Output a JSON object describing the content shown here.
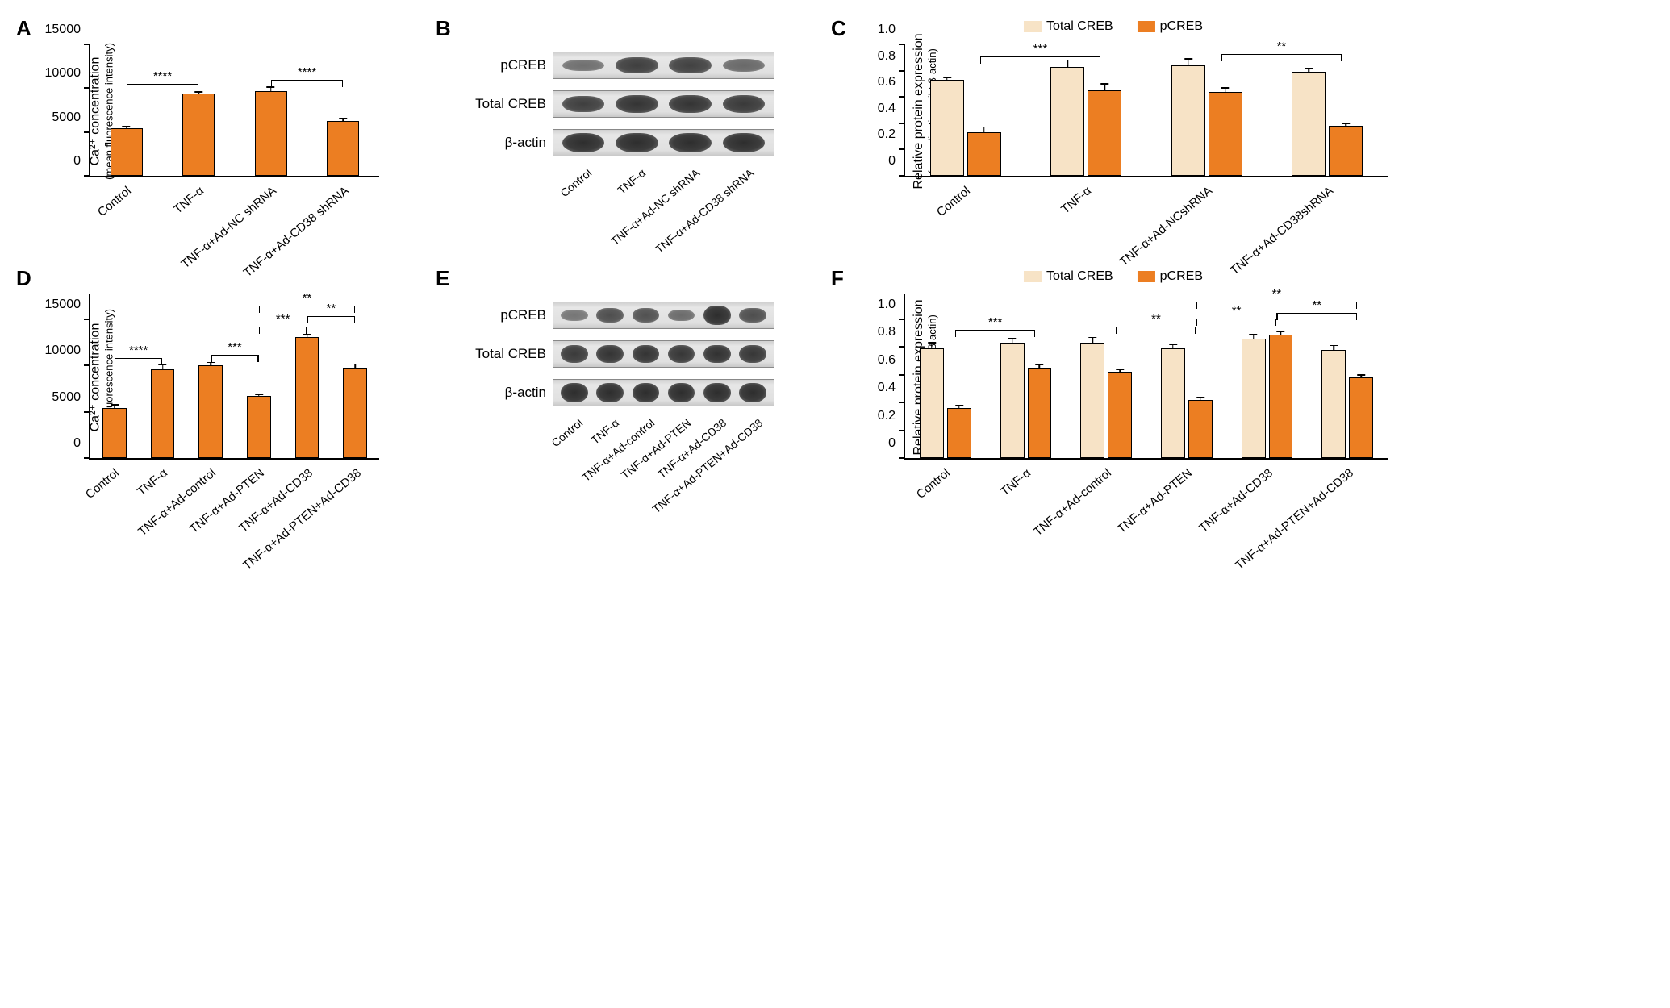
{
  "colors": {
    "bar_orange": "#ec7e22",
    "bar_cream": "#f7e3c6",
    "axis": "#000000"
  },
  "panel_labels": {
    "A": "A",
    "B": "B",
    "C": "C",
    "D": "D",
    "E": "E",
    "F": "F"
  },
  "panelA": {
    "type": "bar",
    "ylabel_line1": "Ca²⁺ concentration",
    "ylabel_line2": "(mean fluorescence intensity)",
    "ylim": [
      0,
      15000
    ],
    "yticks": [
      0,
      5000,
      10000,
      15000
    ],
    "categories": [
      "Control",
      "TNF-α",
      "TNF-α+Ad-NC shRNA",
      "TNF-α+Ad-CD38 shRNA"
    ],
    "values": [
      5400,
      9400,
      9700,
      6300
    ],
    "errors": [
      400,
      350,
      600,
      450
    ],
    "bar_color": "#ec7e22",
    "bar_width_pct": 45,
    "sig": [
      {
        "from": 0,
        "to": 1,
        "y": 10400,
        "label": "****"
      },
      {
        "from": 2,
        "to": 3,
        "y": 10900,
        "label": "****"
      }
    ]
  },
  "panelB": {
    "rows": [
      {
        "label": "pCREB",
        "bands": [
          0.35,
          0.72,
          0.7,
          0.4
        ]
      },
      {
        "label": "Total CREB",
        "bands": [
          0.72,
          0.8,
          0.8,
          0.76
        ]
      },
      {
        "label": "β-actin",
        "bands": [
          0.85,
          0.85,
          0.85,
          0.85
        ]
      }
    ],
    "categories": [
      "Control",
      "TNF-α",
      "TNF-α+Ad-NC shRNA",
      "TNF-α+Ad-CD38 shRNA"
    ]
  },
  "panelC": {
    "type": "grouped-bar",
    "ylabel_line1": "Relative protein expression",
    "ylabel_line2": "(normalization wiht β-actin)",
    "ylim": [
      0,
      1.0
    ],
    "yticks": [
      0,
      0.2,
      0.4,
      0.6,
      0.8,
      1.0
    ],
    "categories": [
      "Control",
      "TNF-α",
      "TNF-α+Ad-NCshRNA",
      "TNF-α+Ad-CD38shRNA"
    ],
    "series": [
      {
        "name": "Total CREB",
        "color": "#f7e3c6",
        "values": [
          0.73,
          0.83,
          0.84,
          0.79
        ],
        "errors": [
          0.03,
          0.06,
          0.06,
          0.04
        ]
      },
      {
        "name": "pCREB",
        "color": "#ec7e22",
        "values": [
          0.33,
          0.65,
          0.64,
          0.38
        ],
        "errors": [
          0.05,
          0.06,
          0.04,
          0.03
        ]
      }
    ],
    "bar_width_pct": 28,
    "sig": [
      {
        "from_group": 0,
        "from_series": 1,
        "to_group": 1,
        "to_series": 1,
        "y": 0.9,
        "label": "***"
      },
      {
        "from_group": 2,
        "from_series": 1,
        "to_group": 3,
        "to_series": 1,
        "y": 0.92,
        "label": "**"
      }
    ]
  },
  "panelD": {
    "type": "bar",
    "ylabel_line1": "Ca²⁺ concentration",
    "ylabel_line2": "(mean fluorescence intensity)",
    "ylim": [
      0,
      15000
    ],
    "yticks": [
      0,
      5000,
      10000,
      15000
    ],
    "categories": [
      "Control",
      "TNF-α",
      "TNF-α+Ad-control",
      "TNF-α+Ad-PTEN",
      "TNF-α+Ad-CD38",
      "TNF-α+Ad-PTEN+Ad-CD38"
    ],
    "values": [
      5400,
      9600,
      10000,
      6700,
      13100,
      9800
    ],
    "errors": [
      500,
      600,
      500,
      300,
      450,
      500
    ],
    "bar_color": "#ec7e22",
    "bar_width_pct": 50,
    "sig": [
      {
        "from": 0,
        "to": 1,
        "y": 10700,
        "label": "****"
      },
      {
        "from": 2,
        "to": 3,
        "y": 11100,
        "label": "***"
      },
      {
        "from": 3,
        "to": 4,
        "y": 14100,
        "label": "***"
      },
      {
        "from": 4,
        "to": 5,
        "y": 15300,
        "label": "**"
      },
      {
        "from": 3,
        "to": 5,
        "y": 16400,
        "label": "**"
      }
    ],
    "headroom": 1.18
  },
  "panelE": {
    "rows": [
      {
        "label": "pCREB",
        "bands": [
          0.3,
          0.6,
          0.58,
          0.38,
          0.85,
          0.6
        ]
      },
      {
        "label": "Total CREB",
        "bands": [
          0.75,
          0.8,
          0.8,
          0.78,
          0.82,
          0.78
        ]
      },
      {
        "label": "β-actin",
        "bands": [
          0.85,
          0.85,
          0.85,
          0.85,
          0.85,
          0.85
        ]
      }
    ],
    "categories": [
      "Control",
      "TNF-α",
      "TNF-α+Ad-control",
      "TNF-α+Ad-PTEN",
      "TNF-α+Ad-CD38",
      "TNF-α+Ad-PTEN+Ad-CD38"
    ]
  },
  "panelF": {
    "type": "grouped-bar",
    "ylabel_line1": "Relative protein expression",
    "ylabel_line2": "(normalization wiht β-actin)",
    "ylim": [
      0,
      1.0
    ],
    "yticks": [
      0,
      0.2,
      0.4,
      0.6,
      0.8,
      1.0
    ],
    "categories": [
      "Control",
      "TNF-α",
      "TNF-α+Ad-control",
      "TNF-α+Ad-PTEN",
      "TNF-α+Ad-CD38",
      "TNF-α+Ad-PTEN+Ad-CD38"
    ],
    "series": [
      {
        "name": "Total CREB",
        "color": "#f7e3c6",
        "values": [
          0.79,
          0.83,
          0.83,
          0.79,
          0.86,
          0.78
        ],
        "errors": [
          0.05,
          0.04,
          0.05,
          0.04,
          0.04,
          0.04
        ]
      },
      {
        "name": "pCREB",
        "color": "#ec7e22",
        "values": [
          0.36,
          0.65,
          0.62,
          0.42,
          0.89,
          0.58
        ],
        "errors": [
          0.03,
          0.03,
          0.03,
          0.03,
          0.03,
          0.03
        ]
      }
    ],
    "bar_width_pct": 30,
    "sig": [
      {
        "from_group": 0,
        "from_series": 1,
        "to_group": 1,
        "to_series": 1,
        "y": 0.92,
        "label": "***"
      },
      {
        "from_group": 2,
        "from_series": 1,
        "to_group": 3,
        "to_series": 1,
        "y": 0.94,
        "label": "**"
      },
      {
        "from_group": 3,
        "from_series": 1,
        "to_group": 4,
        "to_series": 1,
        "y": 1.0,
        "label": "**"
      },
      {
        "from_group": 4,
        "from_series": 1,
        "to_group": 5,
        "to_series": 1,
        "y": 1.04,
        "label": "**"
      },
      {
        "from_group": 3,
        "from_series": 1,
        "to_group": 5,
        "to_series": 1,
        "y": 1.12,
        "label": "**"
      }
    ],
    "headroom": 1.18
  }
}
